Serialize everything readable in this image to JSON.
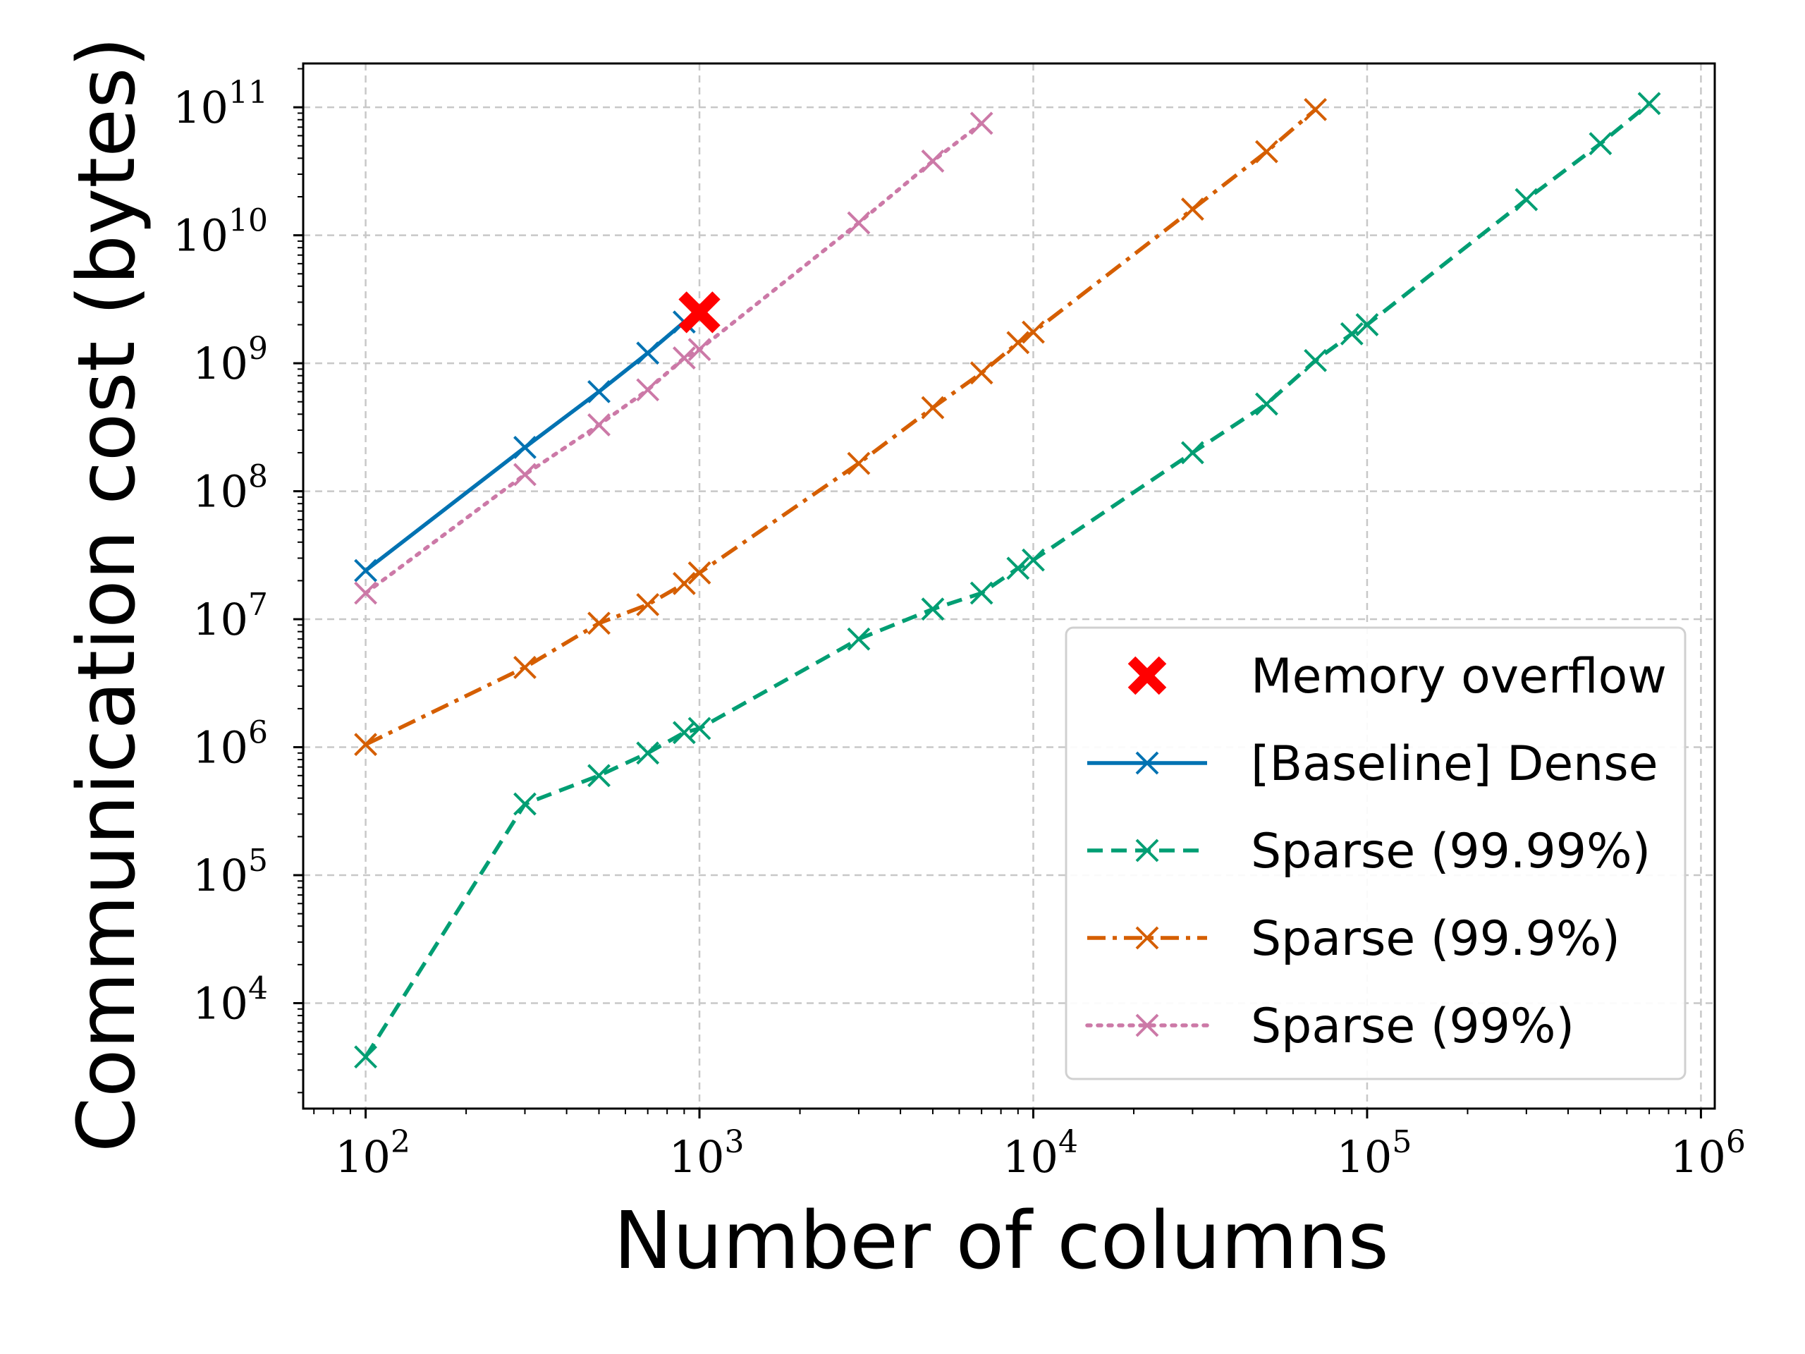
{
  "chart_data": {
    "type": "line",
    "xlabel": "Number of columns",
    "ylabel": "Communication cost (bytes)",
    "x_scale": "log",
    "y_scale": "log",
    "xlim": [
      65,
      1100000
    ],
    "ylim": [
      1500,
      220000000000
    ],
    "grid": true,
    "legend_position": "lower-right",
    "x_ticks": [
      {
        "value": 100,
        "base": "10",
        "exp": "2"
      },
      {
        "value": 1000,
        "base": "10",
        "exp": "3"
      },
      {
        "value": 10000,
        "base": "10",
        "exp": "4"
      },
      {
        "value": 100000,
        "base": "10",
        "exp": "5"
      },
      {
        "value": 1000000,
        "base": "10",
        "exp": "6"
      }
    ],
    "y_ticks": [
      {
        "value": 10000,
        "base": "10",
        "exp": "4"
      },
      {
        "value": 100000,
        "base": "10",
        "exp": "5"
      },
      {
        "value": 1000000,
        "base": "10",
        "exp": "6"
      },
      {
        "value": 10000000,
        "base": "10",
        "exp": "7"
      },
      {
        "value": 100000000,
        "base": "10",
        "exp": "8"
      },
      {
        "value": 1000000000,
        "base": "10",
        "exp": "9"
      },
      {
        "value": 10000000000,
        "base": "10",
        "exp": "10"
      },
      {
        "value": 100000000000,
        "base": "10",
        "exp": "11"
      }
    ],
    "series": [
      {
        "name": "[Baseline] Dense",
        "color": "#0072b2",
        "dash": "solid",
        "marker": "x",
        "x": [
          100,
          300,
          500,
          700,
          900
        ],
        "y": [
          24000000,
          220000000,
          600000000,
          1200000000,
          2100000000
        ]
      },
      {
        "name": "Sparse (99.99%)",
        "color": "#009e73",
        "dash": "dashed",
        "marker": "x",
        "x": [
          100,
          300,
          500,
          700,
          900,
          1000,
          3000,
          5000,
          7000,
          9000,
          10000,
          30000,
          50000,
          70000,
          90000,
          100000,
          300000,
          500000,
          700000
        ],
        "y": [
          3800,
          360000,
          600000,
          900000,
          1300000,
          1400000,
          7000000,
          12000000,
          16000000,
          25000000,
          29000000,
          200000000,
          480000000,
          1050000000,
          1700000000,
          2000000000,
          19000000000,
          52000000000,
          107000000000
        ]
      },
      {
        "name": "Sparse (99.9%)",
        "color": "#d55e00",
        "dash": "dashdot",
        "marker": "x",
        "x": [
          100,
          300,
          500,
          700,
          900,
          1000,
          3000,
          5000,
          7000,
          9000,
          10000,
          30000,
          50000,
          70000
        ],
        "y": [
          1050000,
          4200000,
          9300000,
          13000000,
          19000000,
          23000000,
          165000000,
          450000000,
          840000000,
          1450000000,
          1750000000,
          16000000000,
          45000000000,
          96000000000
        ]
      },
      {
        "name": "Sparse (99%)",
        "color": "#cc79a7",
        "dash": "dotted",
        "marker": "x",
        "x": [
          100,
          300,
          500,
          700,
          900,
          1000,
          3000,
          5000,
          7000
        ],
        "y": [
          16000000,
          135000000,
          330000000,
          620000000,
          1100000000,
          1280000000,
          12500000000,
          38000000000,
          75000000000
        ]
      }
    ],
    "annotations": [
      {
        "name": "Memory overflow",
        "marker": "bold-x",
        "color": "#ff0000",
        "x": 1000,
        "y": 2500000000
      }
    ]
  }
}
